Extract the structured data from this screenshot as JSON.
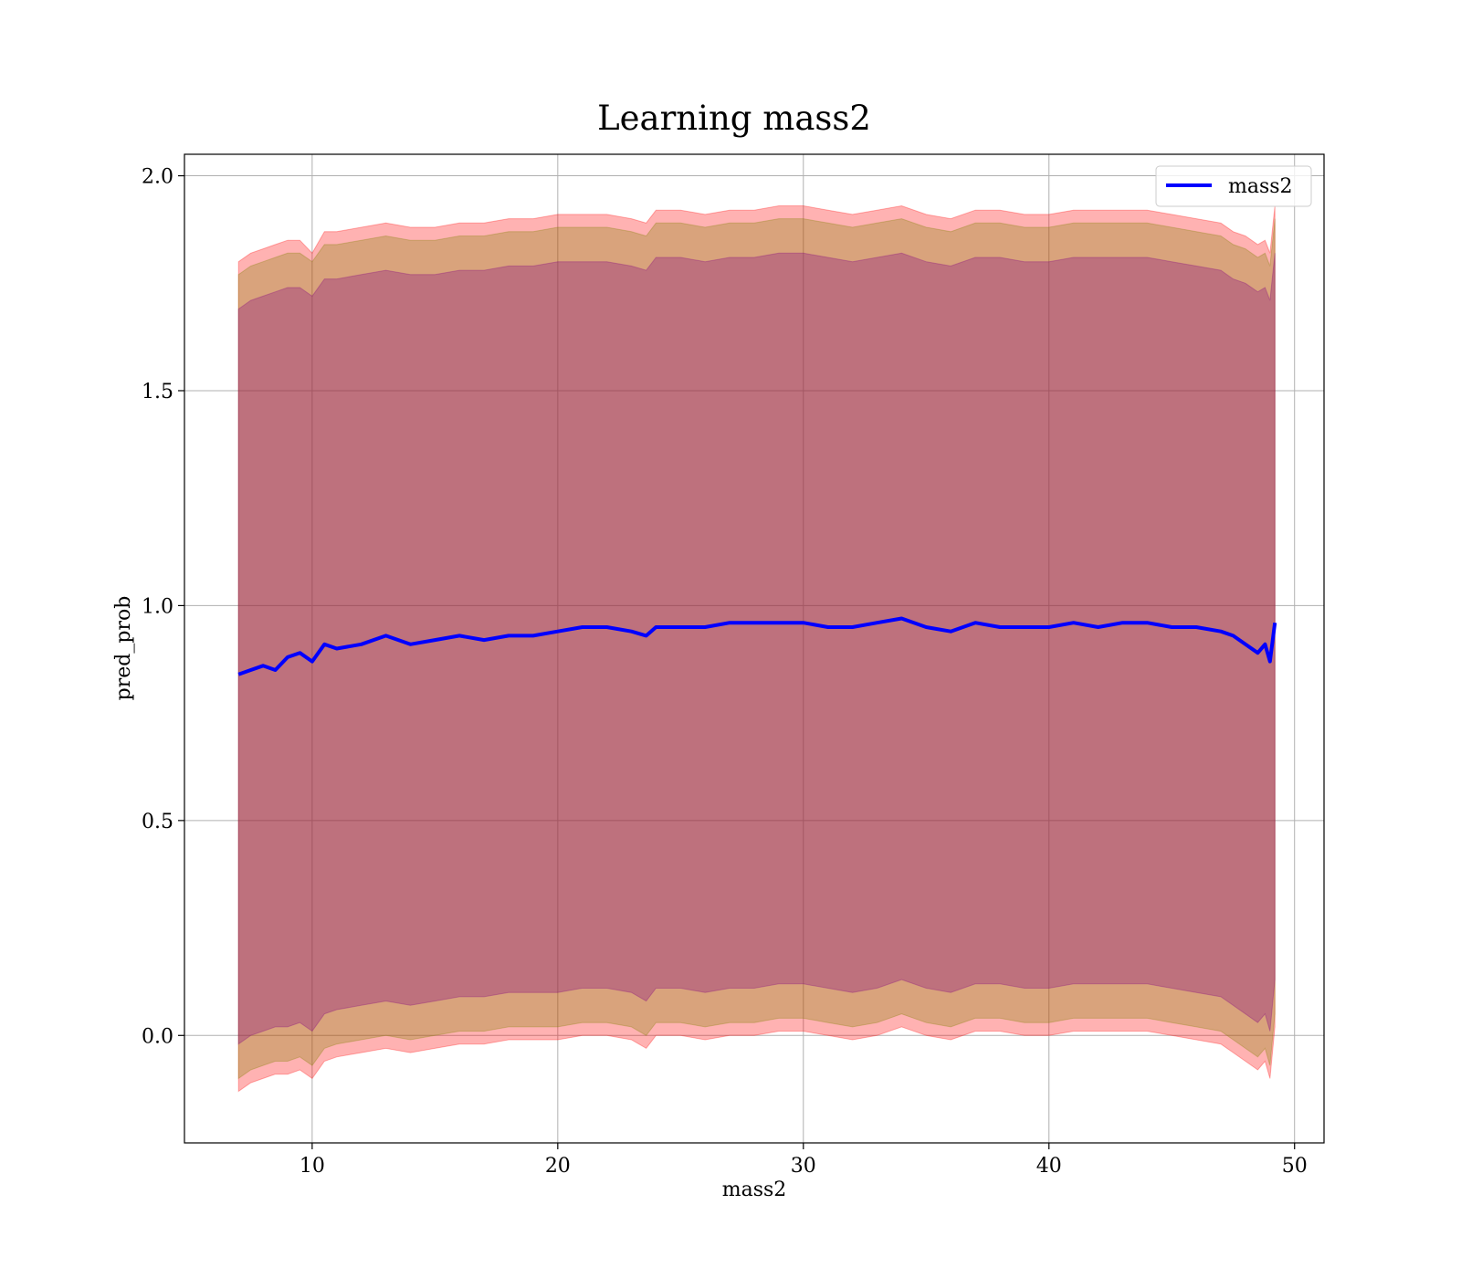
{
  "chart_data": {
    "type": "area",
    "title": "Learning mass2",
    "xlabel": "mass2",
    "ylabel": "pred_prob",
    "xlim": [
      4.8,
      51.2
    ],
    "ylim": [
      -0.25,
      2.05
    ],
    "xticks": [
      10,
      20,
      30,
      40,
      50
    ],
    "yticks": [
      0.0,
      0.5,
      1.0,
      1.5,
      2.0
    ],
    "xtick_labels": [
      "10",
      "20",
      "30",
      "40",
      "50"
    ],
    "ytick_labels": [
      "0.0",
      "0.5",
      "1.0",
      "1.5",
      "2.0"
    ],
    "grid": true,
    "legend": {
      "placement": "top-right",
      "entries": [
        "mass2"
      ]
    },
    "x": [
      7.0,
      7.5,
      8.0,
      8.5,
      9.0,
      9.5,
      10.0,
      10.5,
      11.0,
      12.0,
      13.0,
      14.0,
      15.0,
      16.0,
      17.0,
      18.0,
      19.0,
      20.0,
      21.0,
      22.0,
      23.0,
      23.6,
      24.0,
      25.0,
      26.0,
      27.0,
      28.0,
      29.0,
      30.0,
      31.0,
      32.0,
      33.0,
      34.0,
      35.0,
      36.0,
      37.0,
      38.0,
      39.0,
      40.0,
      41.0,
      42.0,
      43.0,
      44.0,
      45.0,
      46.0,
      47.0,
      47.5,
      48.0,
      48.5,
      48.8,
      49.0,
      49.2
    ],
    "series": [
      {
        "name": "mass2",
        "color": "#0000ff",
        "values": [
          0.84,
          0.85,
          0.86,
          0.85,
          0.88,
          0.89,
          0.87,
          0.91,
          0.9,
          0.91,
          0.93,
          0.91,
          0.92,
          0.93,
          0.92,
          0.93,
          0.93,
          0.94,
          0.95,
          0.95,
          0.94,
          0.93,
          0.95,
          0.95,
          0.95,
          0.96,
          0.96,
          0.96,
          0.96,
          0.95,
          0.95,
          0.96,
          0.97,
          0.95,
          0.94,
          0.96,
          0.95,
          0.95,
          0.95,
          0.96,
          0.95,
          0.96,
          0.96,
          0.95,
          0.95,
          0.94,
          0.93,
          0.91,
          0.89,
          0.91,
          0.87,
          0.96
        ]
      }
    ],
    "bands": [
      {
        "color": "#ff0000",
        "opacity": 0.3,
        "upper": [
          1.8,
          1.82,
          1.83,
          1.84,
          1.85,
          1.85,
          1.82,
          1.87,
          1.87,
          1.88,
          1.89,
          1.88,
          1.88,
          1.89,
          1.89,
          1.9,
          1.9,
          1.91,
          1.91,
          1.91,
          1.9,
          1.89,
          1.92,
          1.92,
          1.91,
          1.92,
          1.92,
          1.93,
          1.93,
          1.92,
          1.91,
          1.92,
          1.93,
          1.91,
          1.9,
          1.92,
          1.92,
          1.91,
          1.91,
          1.92,
          1.92,
          1.92,
          1.92,
          1.91,
          1.9,
          1.89,
          1.87,
          1.86,
          1.84,
          1.85,
          1.82,
          1.93
        ],
        "lower": [
          -0.13,
          -0.11,
          -0.1,
          -0.09,
          -0.09,
          -0.08,
          -0.1,
          -0.06,
          -0.05,
          -0.04,
          -0.03,
          -0.04,
          -0.03,
          -0.02,
          -0.02,
          -0.01,
          -0.01,
          -0.01,
          0.0,
          0.0,
          -0.01,
          -0.03,
          0.0,
          0.0,
          -0.01,
          0.0,
          0.0,
          0.01,
          0.01,
          0.0,
          -0.01,
          0.0,
          0.02,
          0.0,
          -0.01,
          0.01,
          0.01,
          0.0,
          0.0,
          0.01,
          0.01,
          0.01,
          0.01,
          0.0,
          -0.01,
          -0.02,
          -0.04,
          -0.06,
          -0.08,
          -0.06,
          -0.1,
          0.02
        ]
      },
      {
        "color": "#808000",
        "opacity": 0.3,
        "upper": [
          1.77,
          1.79,
          1.8,
          1.81,
          1.82,
          1.82,
          1.8,
          1.84,
          1.84,
          1.85,
          1.86,
          1.85,
          1.85,
          1.86,
          1.86,
          1.87,
          1.87,
          1.88,
          1.88,
          1.88,
          1.87,
          1.86,
          1.89,
          1.89,
          1.88,
          1.89,
          1.89,
          1.9,
          1.9,
          1.89,
          1.88,
          1.89,
          1.9,
          1.88,
          1.87,
          1.89,
          1.89,
          1.88,
          1.88,
          1.89,
          1.89,
          1.89,
          1.89,
          1.88,
          1.87,
          1.86,
          1.84,
          1.83,
          1.81,
          1.82,
          1.79,
          1.9
        ],
        "lower": [
          -0.1,
          -0.08,
          -0.07,
          -0.06,
          -0.06,
          -0.05,
          -0.07,
          -0.03,
          -0.02,
          -0.01,
          0.0,
          -0.01,
          0.0,
          0.01,
          0.01,
          0.02,
          0.02,
          0.02,
          0.03,
          0.03,
          0.02,
          0.0,
          0.03,
          0.03,
          0.02,
          0.03,
          0.03,
          0.04,
          0.04,
          0.03,
          0.02,
          0.03,
          0.05,
          0.03,
          0.02,
          0.04,
          0.04,
          0.03,
          0.03,
          0.04,
          0.04,
          0.04,
          0.04,
          0.03,
          0.02,
          0.01,
          -0.01,
          -0.03,
          -0.05,
          -0.03,
          -0.07,
          0.05
        ]
      },
      {
        "color": "#800080",
        "opacity": 0.3,
        "upper": [
          1.69,
          1.71,
          1.72,
          1.73,
          1.74,
          1.74,
          1.72,
          1.76,
          1.76,
          1.77,
          1.78,
          1.77,
          1.77,
          1.78,
          1.78,
          1.79,
          1.79,
          1.8,
          1.8,
          1.8,
          1.79,
          1.78,
          1.81,
          1.81,
          1.8,
          1.81,
          1.81,
          1.82,
          1.82,
          1.81,
          1.8,
          1.81,
          1.82,
          1.8,
          1.79,
          1.81,
          1.81,
          1.8,
          1.8,
          1.81,
          1.81,
          1.81,
          1.81,
          1.8,
          1.79,
          1.78,
          1.76,
          1.75,
          1.73,
          1.74,
          1.71,
          1.82
        ],
        "lower": [
          -0.02,
          0.0,
          0.01,
          0.02,
          0.02,
          0.03,
          0.01,
          0.05,
          0.06,
          0.07,
          0.08,
          0.07,
          0.08,
          0.09,
          0.09,
          0.1,
          0.1,
          0.1,
          0.11,
          0.11,
          0.1,
          0.08,
          0.11,
          0.11,
          0.1,
          0.11,
          0.11,
          0.12,
          0.12,
          0.11,
          0.1,
          0.11,
          0.13,
          0.11,
          0.1,
          0.12,
          0.12,
          0.11,
          0.11,
          0.12,
          0.12,
          0.12,
          0.12,
          0.11,
          0.1,
          0.09,
          0.07,
          0.05,
          0.03,
          0.05,
          0.01,
          0.13
        ]
      }
    ]
  }
}
